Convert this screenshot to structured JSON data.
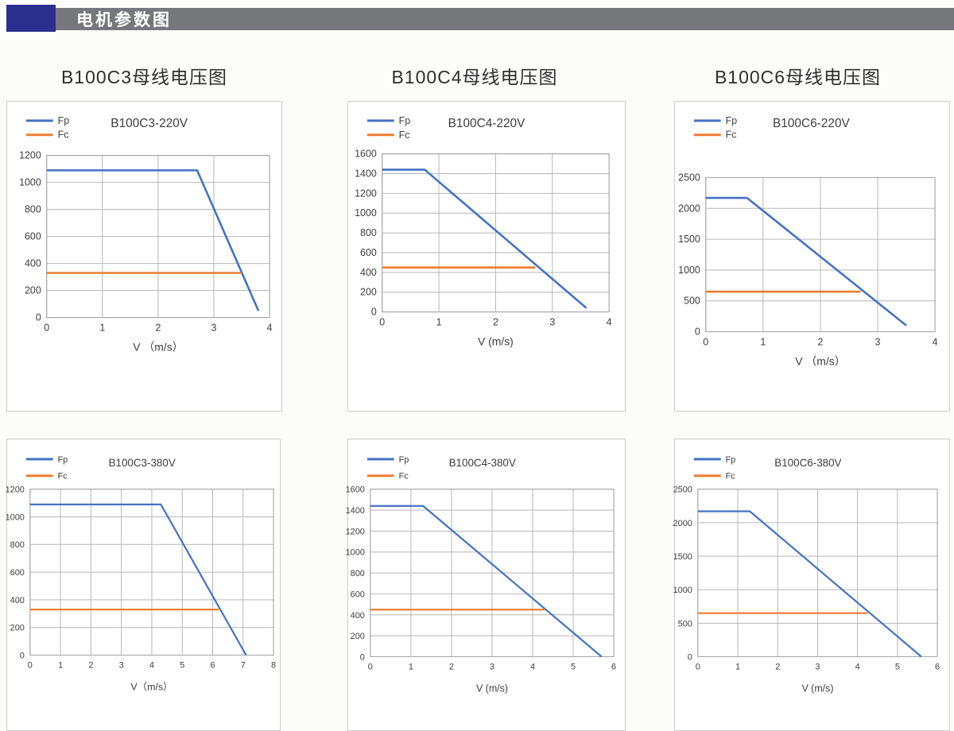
{
  "header": {
    "title": "电机参数图"
  },
  "colors": {
    "header_accent": "#2a2f8e",
    "header_bar": "#76777b",
    "fp": "#4472C4",
    "fc": "#ED7D31",
    "grid": "#b6b6b6",
    "plot_border": "#a3a3a3",
    "panel_border": "#cbcbcb",
    "text": "#3d3d3d"
  },
  "columns": [
    {
      "title": "B100C3母线电压图"
    },
    {
      "title": "B100C4母线电压图"
    },
    {
      "title": "B100C6母线电压图"
    }
  ],
  "chart_data": [
    {
      "type": "line",
      "title": "B100C3-220V",
      "xlabel": "V （m/s）",
      "xlim": [
        0,
        4
      ],
      "ylim": [
        0,
        1200
      ],
      "xticks": [
        0,
        1,
        2,
        3,
        4
      ],
      "yticks": [
        0,
        200,
        400,
        600,
        800,
        1000,
        1200
      ],
      "grid": true,
      "legend_position": "top-left",
      "series": [
        {
          "name": "Fp",
          "color": "#4472C4",
          "points": [
            [
              0,
              1090
            ],
            [
              2.7,
              1090
            ],
            [
              3.8,
              50
            ]
          ]
        },
        {
          "name": "Fc",
          "color": "#ED7D31",
          "points": [
            [
              0,
              330
            ],
            [
              3.5,
              330
            ]
          ]
        }
      ]
    },
    {
      "type": "line",
      "title": "B100C4-220V",
      "xlabel": "V (m/s)",
      "xlim": [
        0,
        4
      ],
      "ylim": [
        0,
        1600
      ],
      "xticks": [
        0,
        1,
        2,
        3,
        4
      ],
      "yticks": [
        0,
        200,
        400,
        600,
        800,
        1000,
        1200,
        1400,
        1600
      ],
      "grid": true,
      "legend_position": "top-left",
      "series": [
        {
          "name": "Fp",
          "color": "#4472C4",
          "points": [
            [
              0,
              1440
            ],
            [
              0.75,
              1440
            ],
            [
              3.6,
              40
            ]
          ]
        },
        {
          "name": "Fc",
          "color": "#ED7D31",
          "points": [
            [
              0,
              450
            ],
            [
              2.7,
              450
            ]
          ]
        }
      ]
    },
    {
      "type": "line",
      "title": "B100C6-220V",
      "xlabel": "V （m/s）",
      "xlim": [
        0,
        4
      ],
      "ylim": [
        0,
        2500
      ],
      "xticks": [
        0,
        1,
        2,
        3,
        4
      ],
      "yticks": [
        0,
        500,
        1000,
        1500,
        2000,
        2500
      ],
      "grid": true,
      "legend_position": "top-left",
      "series": [
        {
          "name": "Fp",
          "color": "#4472C4",
          "points": [
            [
              0,
              2170
            ],
            [
              0.72,
              2170
            ],
            [
              3.5,
              100
            ]
          ]
        },
        {
          "name": "Fc",
          "color": "#ED7D31",
          "points": [
            [
              0,
              650
            ],
            [
              2.7,
              650
            ]
          ]
        }
      ]
    },
    {
      "type": "line",
      "title": "B100C3-380V",
      "xlabel": "V（m/s）",
      "xlim": [
        0,
        8
      ],
      "ylim": [
        0,
        1200
      ],
      "xticks": [
        0,
        1,
        2,
        3,
        4,
        5,
        6,
        7,
        8
      ],
      "yticks": [
        0,
        200,
        400,
        600,
        800,
        1000,
        1200
      ],
      "grid": true,
      "legend_position": "top-left",
      "series": [
        {
          "name": "Fp",
          "color": "#4472C4",
          "points": [
            [
              0,
              1090
            ],
            [
              4.3,
              1090
            ],
            [
              7.1,
              0
            ]
          ]
        },
        {
          "name": "Fc",
          "color": "#ED7D31",
          "points": [
            [
              0,
              330
            ],
            [
              6.2,
              330
            ]
          ]
        }
      ]
    },
    {
      "type": "line",
      "title": "B100C4-380V",
      "xlabel": "V (m/s)",
      "xlim": [
        0,
        6
      ],
      "ylim": [
        0,
        1600
      ],
      "xticks": [
        0,
        1,
        2,
        3,
        4,
        5,
        6
      ],
      "yticks": [
        0,
        200,
        400,
        600,
        800,
        1000,
        1200,
        1400,
        1600
      ],
      "grid": true,
      "legend_position": "top-left",
      "series": [
        {
          "name": "Fp",
          "color": "#4472C4",
          "points": [
            [
              0,
              1440
            ],
            [
              1.3,
              1440
            ],
            [
              5.7,
              0
            ]
          ]
        },
        {
          "name": "Fc",
          "color": "#ED7D31",
          "points": [
            [
              0,
              450
            ],
            [
              4.3,
              450
            ]
          ]
        }
      ]
    },
    {
      "type": "line",
      "title": "B100C6-380V",
      "xlabel": "V (m/s)",
      "xlim": [
        0,
        6
      ],
      "ylim": [
        0,
        2500
      ],
      "xticks": [
        0,
        1,
        2,
        3,
        4,
        5,
        6
      ],
      "yticks": [
        0,
        500,
        1000,
        1500,
        2000,
        2500
      ],
      "grid": true,
      "legend_position": "top-left",
      "series": [
        {
          "name": "Fp",
          "color": "#4472C4",
          "points": [
            [
              0,
              2170
            ],
            [
              1.3,
              2170
            ],
            [
              5.6,
              0
            ]
          ]
        },
        {
          "name": "Fc",
          "color": "#ED7D31",
          "points": [
            [
              0,
              650
            ],
            [
              4.25,
              650
            ]
          ]
        }
      ]
    }
  ]
}
